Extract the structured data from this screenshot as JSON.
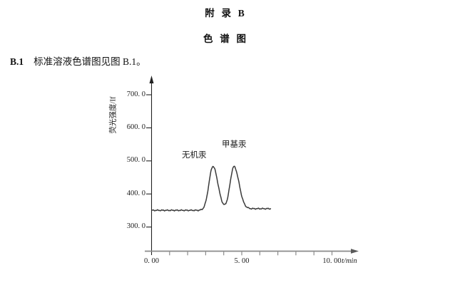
{
  "page": {
    "title1": "附  录  B",
    "title2": "色  谱  图",
    "section_label": "B.1",
    "section_text": "标准溶液色谱图见图 B.1。"
  },
  "chart_data": {
    "type": "line",
    "title": "",
    "xlabel": "t/min",
    "ylabel": "荧光强度/If",
    "x_range": [
      0,
      11.5
    ],
    "y_range": [
      260,
      750
    ],
    "grid": false,
    "x_ticks": [
      {
        "value": 0,
        "label": "0. 00"
      },
      {
        "value": 5,
        "label": "5. 00"
      },
      {
        "value": 10,
        "label": "10. 00"
      }
    ],
    "x_minor_ticks": [
      1,
      2,
      3,
      4,
      5,
      6,
      7,
      8,
      9,
      10
    ],
    "y_ticks": [
      {
        "value": 700,
        "label": "700. 0"
      },
      {
        "value": 600,
        "label": "600. 0"
      },
      {
        "value": 500,
        "label": "500. 0"
      },
      {
        "value": 400,
        "label": "400. 0"
      },
      {
        "value": 300,
        "label": "300. 0"
      }
    ],
    "trace": {
      "t_start": 0,
      "t_end": 6.62,
      "baseline": 350.5,
      "baseline_post": 355.5,
      "post_shift_center": 4.95,
      "post_shift_width": 0.15,
      "valley_intensity": 370
    },
    "peaks": [
      {
        "name": "无机汞",
        "retention_time_min": 3.4,
        "apex_intensity": 483,
        "height": 133,
        "sigma_left": 0.22,
        "sigma_right": 0.28
      },
      {
        "name": "甲基汞",
        "retention_time_min": 4.57,
        "apex_intensity": 482,
        "height": 132,
        "sigma_left": 0.22,
        "sigma_right": 0.28
      }
    ],
    "colors": {
      "trace": "#3a3a3a",
      "y_axis": "#222222",
      "x_axis": "#8a8a8a",
      "text": "#222222"
    }
  }
}
